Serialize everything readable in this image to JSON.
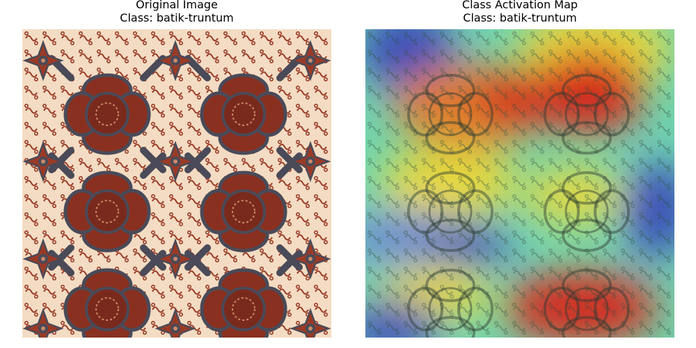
{
  "panels": [
    {
      "title": "Original Image",
      "class_label": "Class: batik-truntum",
      "image_name": "batik-truntum-original"
    },
    {
      "title": "Class Activation Map",
      "class_label": "Class: batik-truntum",
      "image_name": "batik-truntum-activation-heatmap"
    }
  ],
  "colors": {
    "fabric_background": "#f3dcc3",
    "motif_red": "#8a3020",
    "motif_dark": "#4a4a58",
    "heat_high": "#d42a1a",
    "heat_mid": "#e8d83a",
    "heat_low": "#3a4fb8"
  }
}
